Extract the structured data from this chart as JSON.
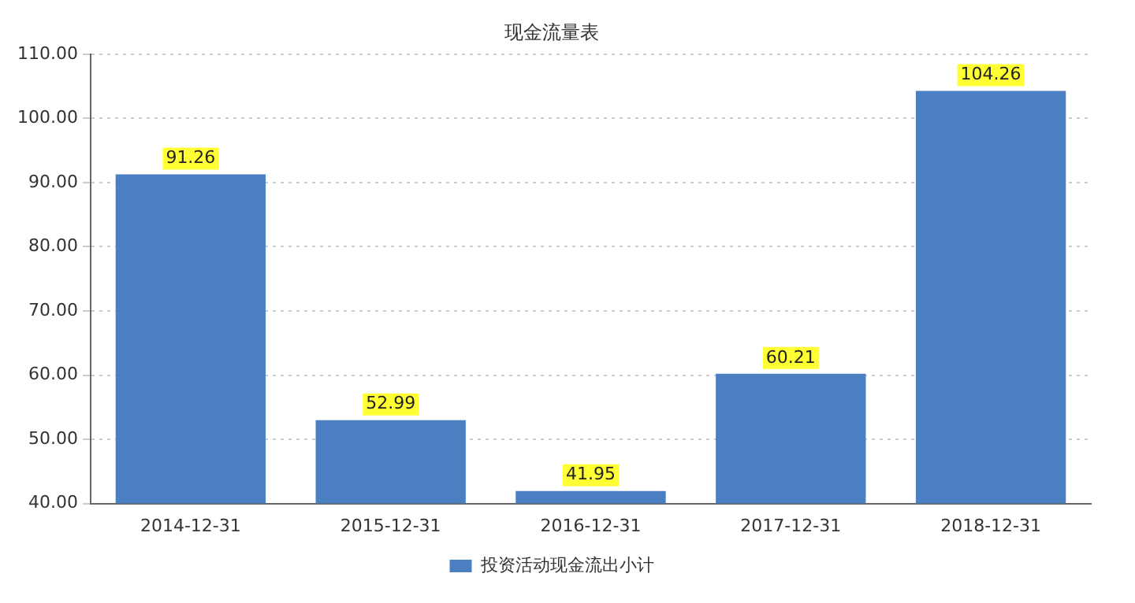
{
  "chart_data": {
    "type": "bar",
    "title": "现金流量表",
    "categories": [
      "2014-12-31",
      "2015-12-31",
      "2016-12-31",
      "2017-12-31",
      "2018-12-31"
    ],
    "series": [
      {
        "name": "投资活动现金流出小计",
        "color": "#4a7fc1",
        "values": [
          91.26,
          52.99,
          41.95,
          60.21,
          104.26
        ]
      }
    ],
    "ylim": [
      40,
      110
    ],
    "yticks": [
      {
        "value": 40,
        "label": "40.00"
      },
      {
        "value": 50,
        "label": "50.00"
      },
      {
        "value": 60,
        "label": "60.00"
      },
      {
        "value": 70,
        "label": "70.00"
      },
      {
        "value": 80,
        "label": "80.00"
      },
      {
        "value": 90,
        "label": "90.00"
      },
      {
        "value": 100,
        "label": "100.00"
      },
      {
        "value": 110,
        "label": "110.00"
      }
    ],
    "grid": "y",
    "legend": "bottom",
    "data_labels": true
  }
}
